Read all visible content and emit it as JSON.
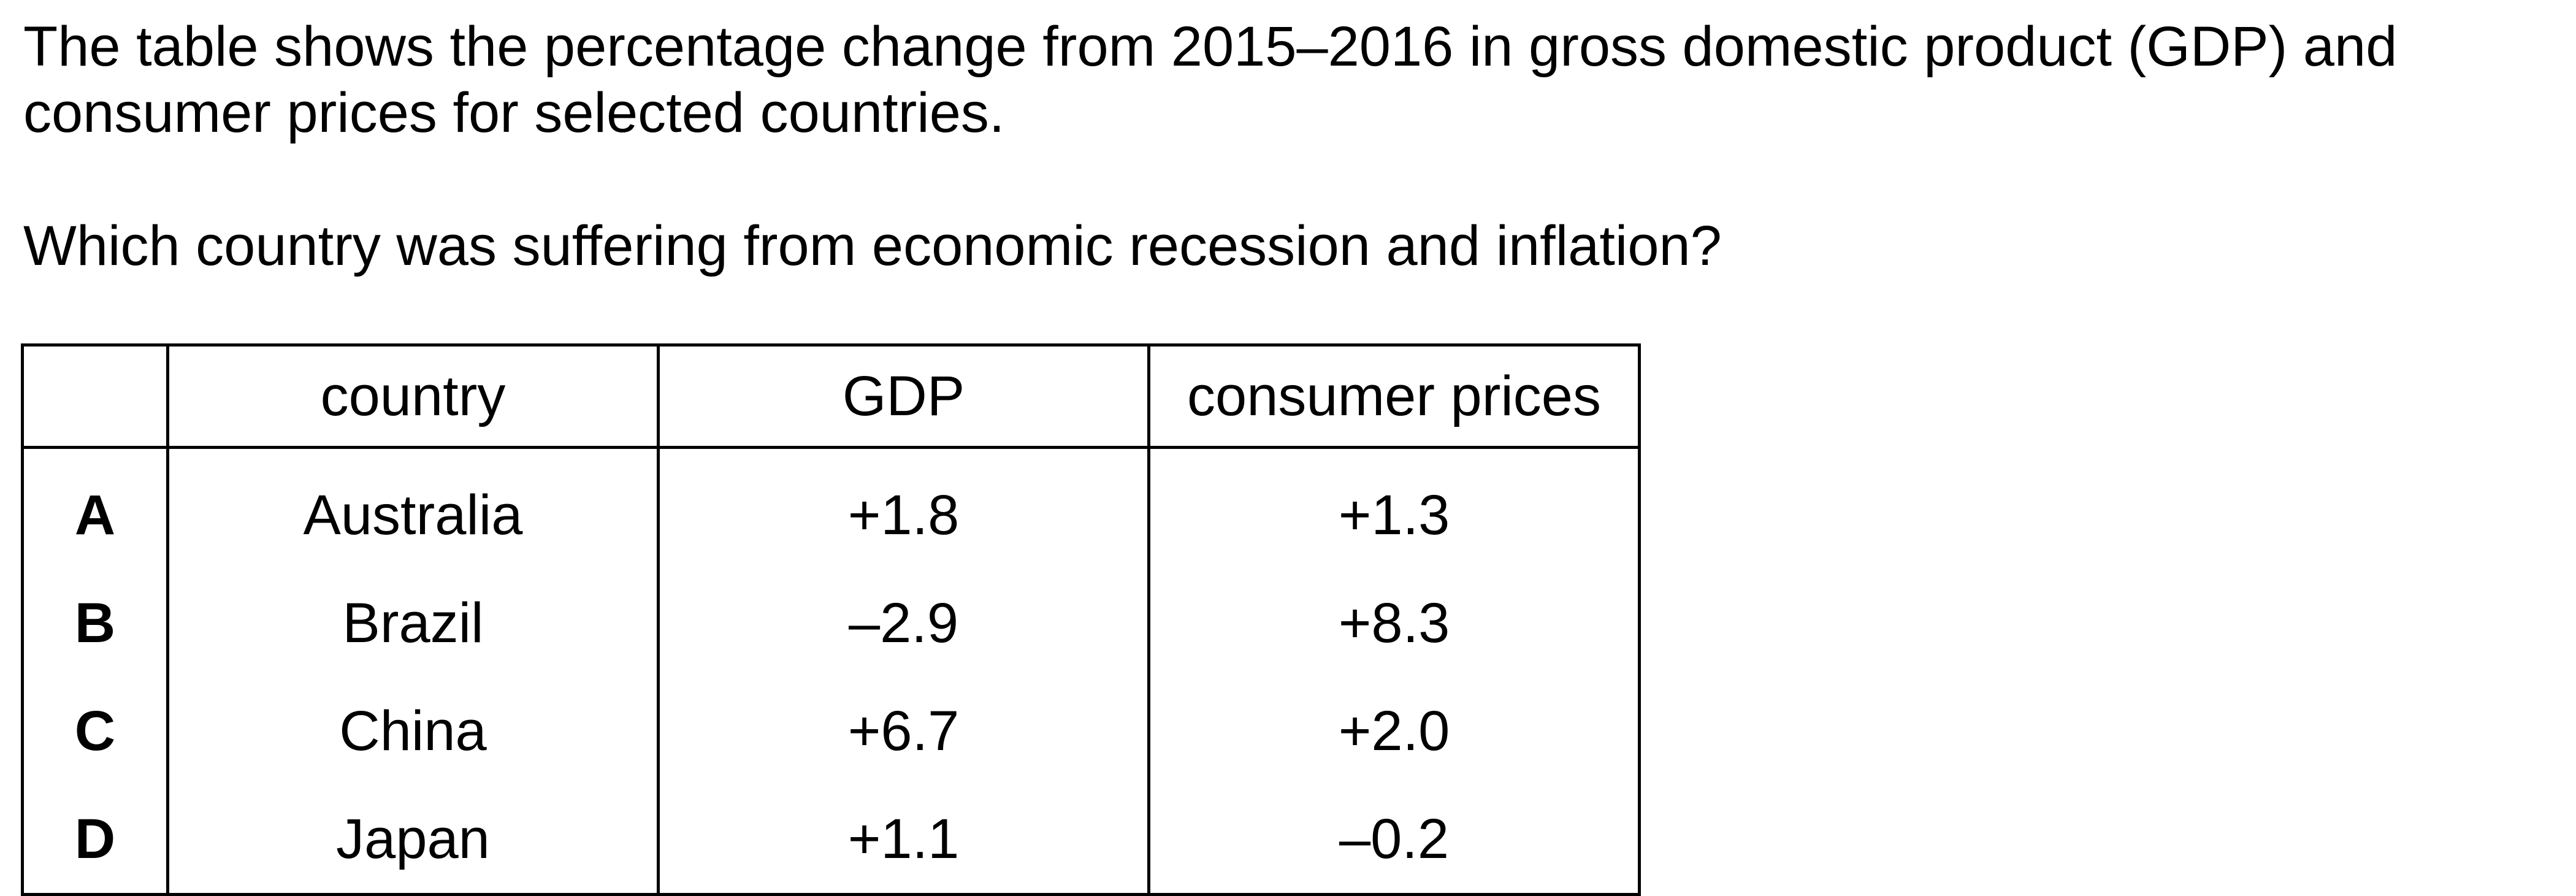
{
  "intro": {
    "line1": "The table shows the percentage change from 2015–2016 in gross domestic product (GDP) and",
    "line2": "consumer prices for selected countries."
  },
  "question": "Which country was suffering from economic recession and inflation?",
  "table": {
    "headers": [
      "",
      "country",
      "GDP",
      "consumer prices"
    ],
    "rows": [
      {
        "option": "A",
        "country": "Australia",
        "gdp": "+1.8",
        "consumer_prices": "+1.3"
      },
      {
        "option": "B",
        "country": "Brazil",
        "gdp": "–2.9",
        "consumer_prices": "+8.3"
      },
      {
        "option": "C",
        "country": "China",
        "gdp": "+6.7",
        "consumer_prices": "+2.0"
      },
      {
        "option": "D",
        "country": "Japan",
        "gdp": "+1.1",
        "consumer_prices": "–0.2"
      }
    ]
  }
}
